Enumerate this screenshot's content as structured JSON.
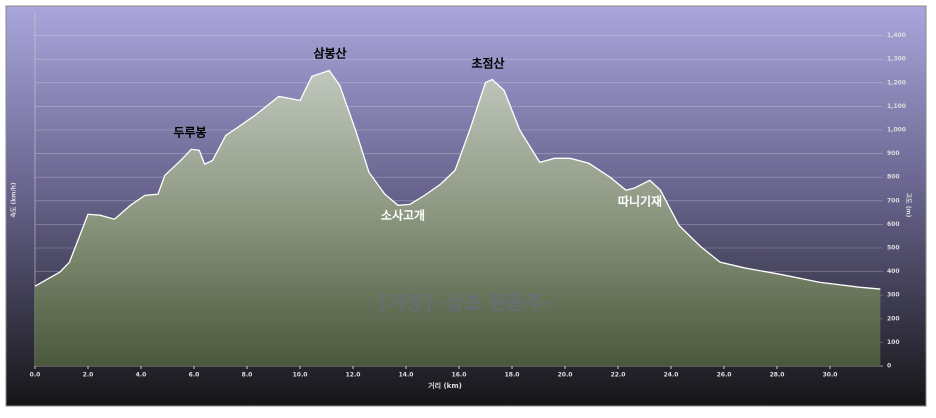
{
  "chart_data": {
    "type": "area",
    "x_label": "거리 (km)",
    "y_label": "속도 (km/h)",
    "y2_label": "고도 (m)",
    "watermark": "[거창] -삼초 환종주-",
    "annotations": [
      "두루봉",
      "삼봉산",
      "소사고개",
      "초점산",
      "따니기재"
    ],
    "x": [
      0,
      0.94,
      1.3,
      2.0,
      2.45,
      3.0,
      3.6,
      4.15,
      4.64,
      4.9,
      5.5,
      5.9,
      6.2,
      6.4,
      6.7,
      7.2,
      7.7,
      8.3,
      9.2,
      9.6,
      10.0,
      10.45,
      11.1,
      11.5,
      12.1,
      12.6,
      13.2,
      13.7,
      14.15,
      14.7,
      15.3,
      15.85,
      16.4,
      17.0,
      17.25,
      17.7,
      18.3,
      19.05,
      19.6,
      20.2,
      20.9,
      21.7,
      22.3,
      22.6,
      23.2,
      23.6,
      24.3,
      25.1,
      25.85,
      26.8,
      28.1,
      29.6,
      31.1,
      31.9
    ],
    "series": [
      {
        "name": "고도",
        "color": "#ffffff",
        "axis": "y2",
        "values": [
          338,
          398,
          440,
          643,
          639,
          622,
          681,
          723,
          728,
          808,
          871,
          918,
          914,
          855,
          871,
          977,
          1015,
          1062,
          1142,
          1134,
          1125,
          1227,
          1252,
          1189,
          998,
          821,
          728,
          681,
          685,
          723,
          770,
          829,
          998,
          1201,
          1214,
          1168,
          998,
          863,
          880,
          880,
          859,
          800,
          745,
          753,
          787,
          745,
          596,
          508,
          440,
          415,
          389,
          355,
          334,
          326
        ]
      }
    ],
    "xlim": [
      0,
      32
    ],
    "xticks": [
      {
        "value": 0,
        "label": "0.0"
      },
      {
        "value": 2,
        "label": "2.0"
      },
      {
        "value": 4,
        "label": "4.0"
      },
      {
        "value": 6,
        "label": "6.0"
      },
      {
        "value": 8,
        "label": "8.0"
      },
      {
        "value": 10,
        "label": "10.0"
      },
      {
        "value": 12,
        "label": "12.0"
      },
      {
        "value": 14,
        "label": "14.0"
      },
      {
        "value": 16,
        "label": "16.0"
      },
      {
        "value": 18,
        "label": "18.0"
      },
      {
        "value": 20,
        "label": "20.0"
      },
      {
        "value": 22,
        "label": "22.0"
      },
      {
        "value": 24,
        "label": "24.0"
      },
      {
        "value": 26,
        "label": "26.0"
      },
      {
        "value": 28,
        "label": "28.0"
      },
      {
        "value": 30,
        "label": "30.0"
      }
    ],
    "y2lim": [
      0,
      1500
    ],
    "y2ticks": [
      0,
      100,
      200,
      300,
      400,
      500,
      600,
      700,
      800,
      900,
      {
        "value": 1000,
        "label": "1,000"
      },
      {
        "value": 1100,
        "label": "1,100"
      },
      {
        "value": 1200,
        "label": "1,200"
      },
      {
        "value": 1300,
        "label": "1,300"
      },
      {
        "value": 1400,
        "label": "1,400"
      }
    ],
    "grid": true
  }
}
